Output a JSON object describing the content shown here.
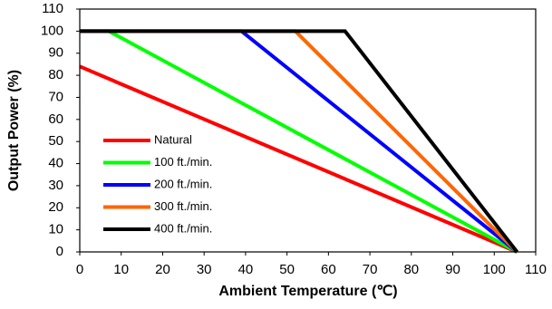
{
  "chart_data": {
    "type": "line",
    "x_label": "Ambient Temperature (℃)",
    "y_label": "Output Power  (%)",
    "xlim": [
      0,
      110
    ],
    "xticks": [
      0,
      10,
      20,
      30,
      40,
      50,
      60,
      70,
      80,
      90,
      100,
      110
    ],
    "ylim": [
      0,
      110
    ],
    "yticks": [
      0,
      10,
      20,
      30,
      40,
      50,
      60,
      70,
      80,
      90,
      100,
      110
    ],
    "legend": "lower left",
    "series": [
      {
        "name": "Natural",
        "color": "#ff0000",
        "x": [
          0,
          105.5
        ],
        "values": [
          84,
          0
        ]
      },
      {
        "name": "100 ft./min.",
        "color": "#00ff00",
        "x": [
          0,
          7,
          105.5
        ],
        "values": [
          100,
          100,
          0
        ]
      },
      {
        "name": "200 ft./min.",
        "color": "#0000ff",
        "x": [
          0,
          39,
          105.5
        ],
        "values": [
          100,
          100,
          0
        ]
      },
      {
        "name": "300 ft./min.",
        "color": "#ff6600",
        "x": [
          0,
          52,
          105.5
        ],
        "values": [
          100,
          100,
          0
        ]
      },
      {
        "name": "400 ft./min.",
        "color": "#000000",
        "x": [
          0,
          64,
          105.5
        ],
        "values": [
          100,
          100,
          0
        ]
      }
    ]
  }
}
